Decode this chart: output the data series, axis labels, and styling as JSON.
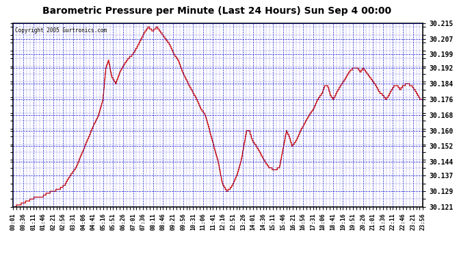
{
  "title": "Barometric Pressure per Minute (Last 24 Hours) Sun Sep 4 00:00",
  "copyright": "Copyright 2005 Gurtronics.com",
  "y_min": 30.121,
  "y_max": 30.215,
  "y_ticks": [
    30.121,
    30.129,
    30.137,
    30.144,
    30.152,
    30.16,
    30.168,
    30.176,
    30.184,
    30.192,
    30.199,
    30.207,
    30.215
  ],
  "x_labels": [
    "00:01",
    "00:36",
    "01:11",
    "01:46",
    "02:21",
    "02:56",
    "03:31",
    "04:06",
    "04:41",
    "05:16",
    "05:51",
    "06:26",
    "07:01",
    "07:36",
    "08:11",
    "08:46",
    "09:21",
    "09:56",
    "10:31",
    "11:06",
    "11:41",
    "12:16",
    "12:51",
    "13:26",
    "14:01",
    "14:36",
    "15:11",
    "15:46",
    "16:21",
    "16:56",
    "17:31",
    "18:06",
    "18:41",
    "19:16",
    "19:51",
    "20:26",
    "21:01",
    "21:36",
    "22:11",
    "22:46",
    "23:21",
    "23:56"
  ],
  "line_color": "#cc0000",
  "background_color": "#ffffff",
  "plot_bg_color": "#ffffff",
  "grid_color": "#0000cc",
  "border_color": "#000000",
  "title_fontsize": 10,
  "tick_fontsize": 7,
  "x_tick_fontsize": 6
}
